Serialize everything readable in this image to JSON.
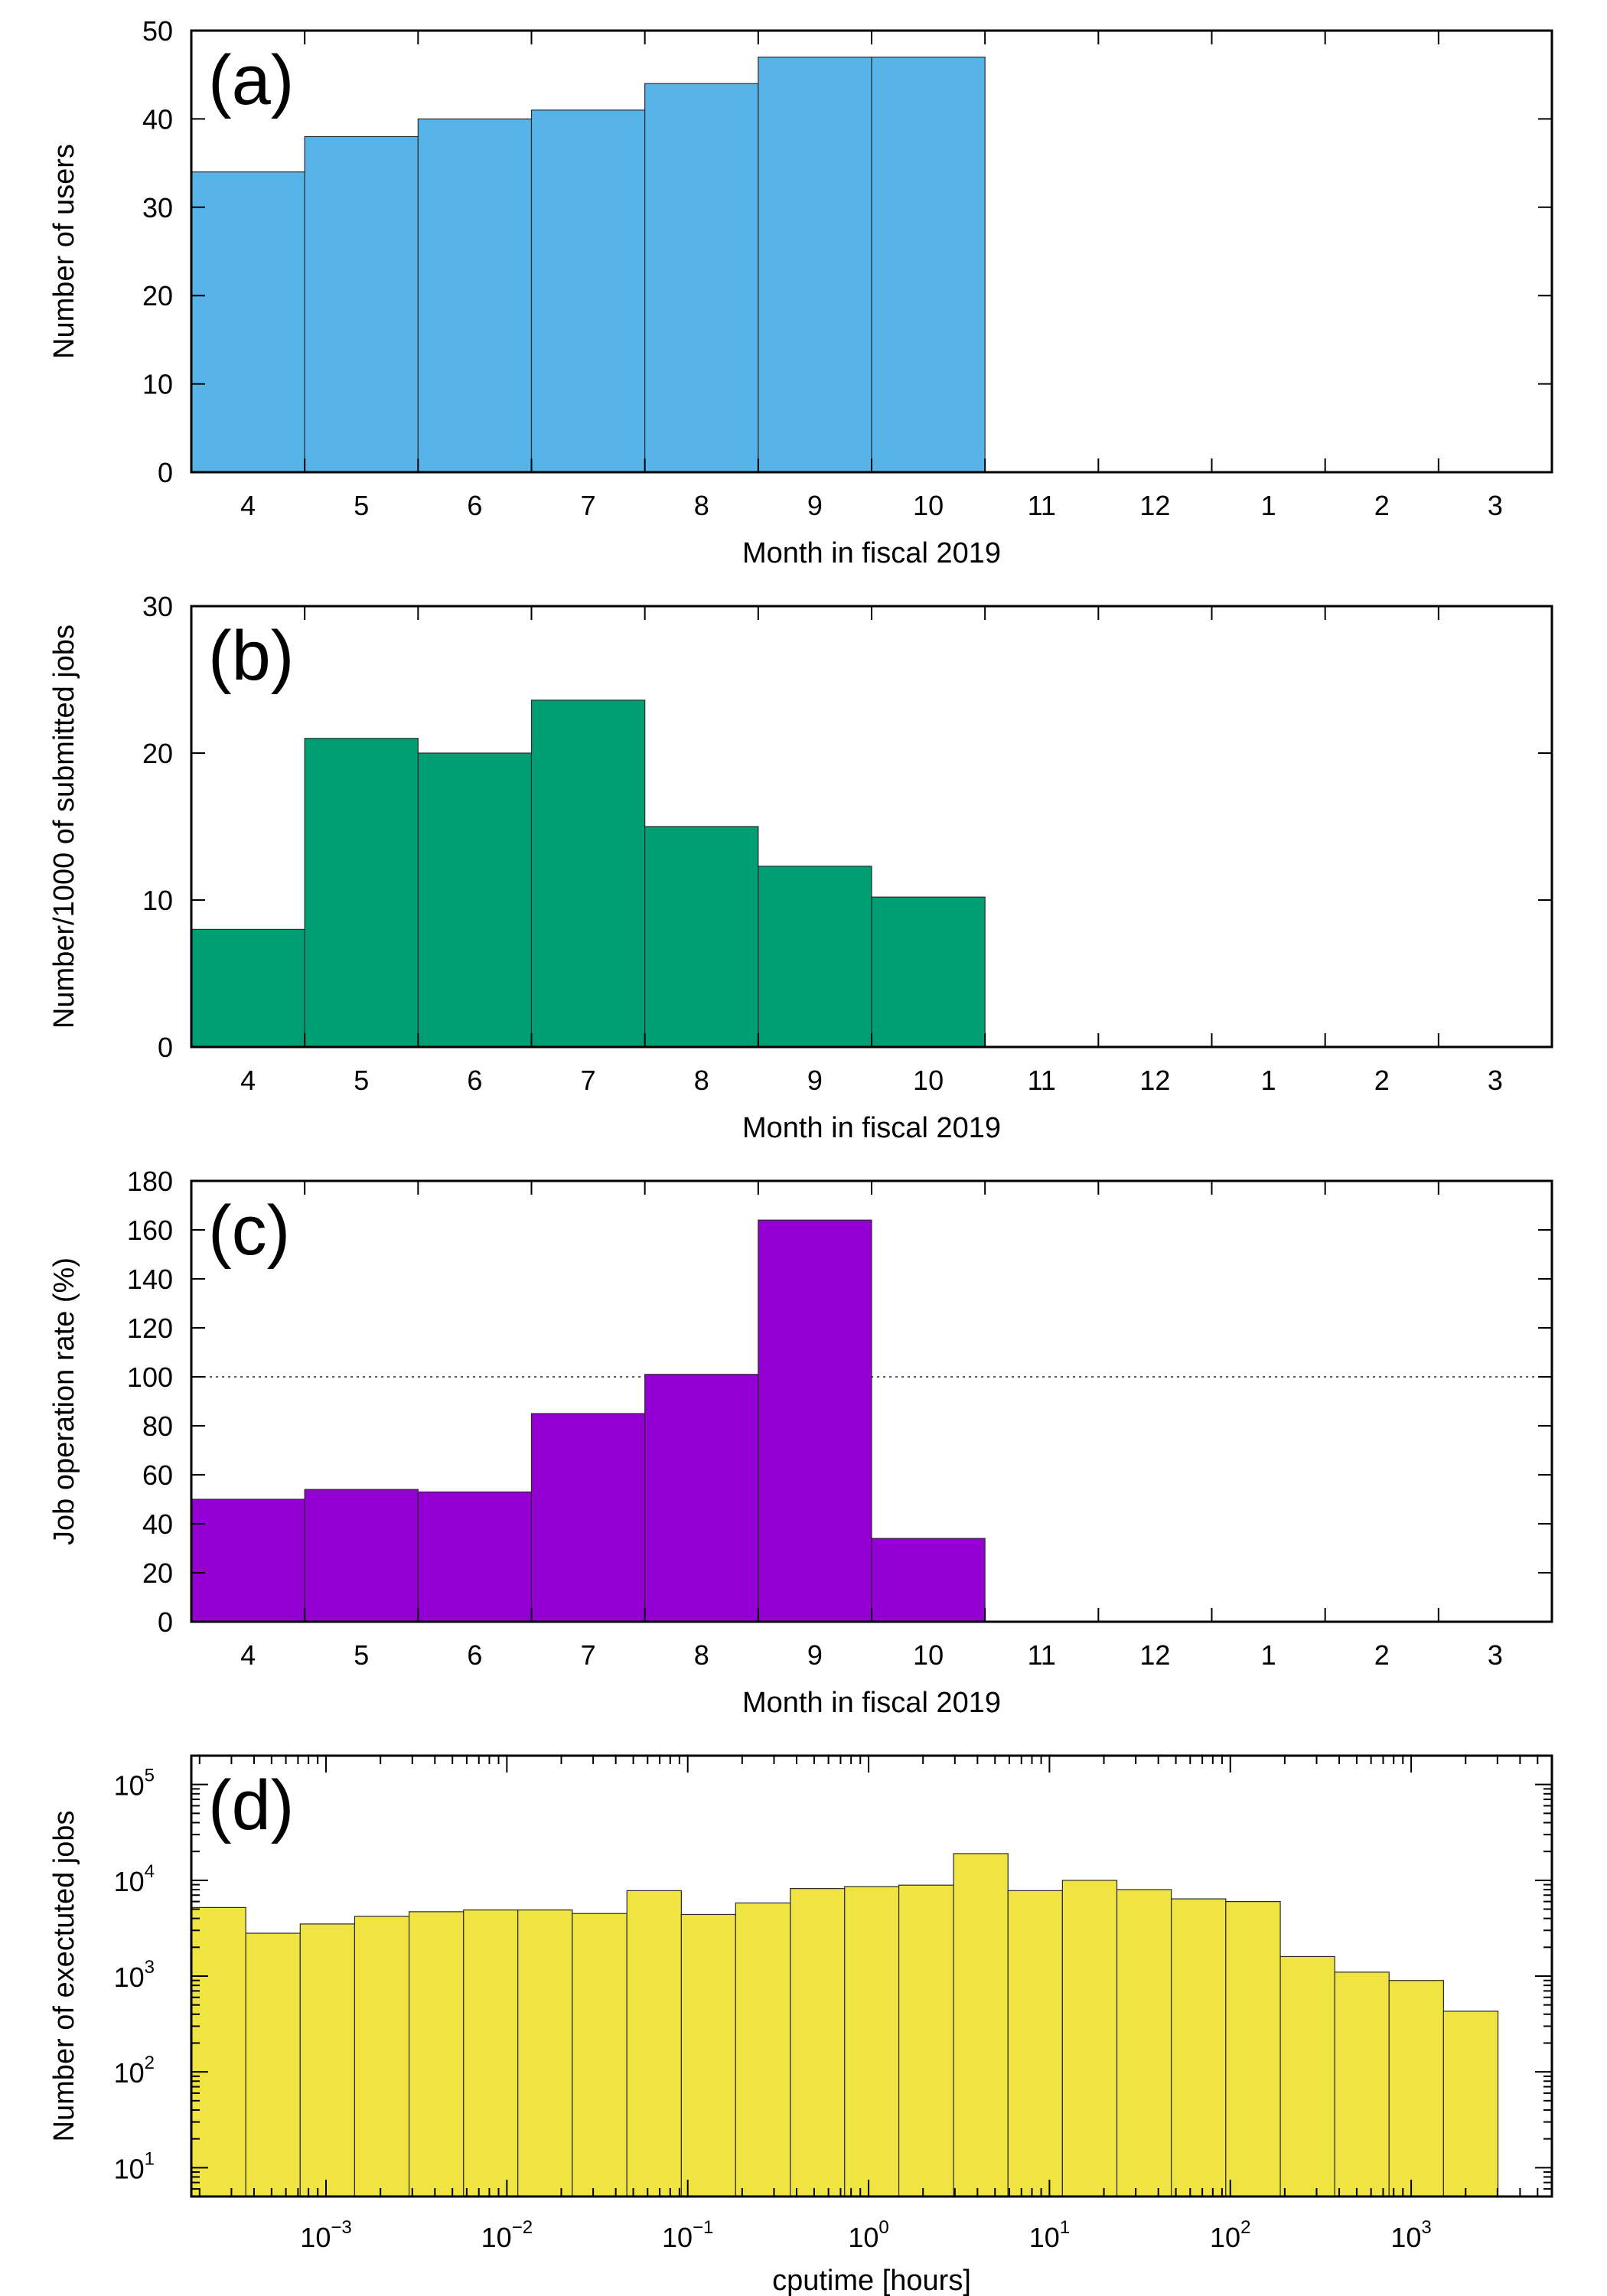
{
  "chart_data": [
    {
      "type": "bar",
      "panel_label": "(a)",
      "categories": [
        "4",
        "5",
        "6",
        "7",
        "8",
        "9",
        "10",
        "11",
        "12",
        "1",
        "2",
        "3"
      ],
      "values": [
        34,
        38,
        40,
        41,
        44,
        47,
        47,
        null,
        null,
        null,
        null,
        null
      ],
      "xlabel": "Month in fiscal 2019",
      "ylabel": "Number of users",
      "ylim": [
        0,
        50
      ],
      "yticks": [
        0,
        10,
        20,
        30,
        40,
        50
      ],
      "color": "#56b4e9"
    },
    {
      "type": "bar",
      "panel_label": "(b)",
      "categories": [
        "4",
        "5",
        "6",
        "7",
        "8",
        "9",
        "10",
        "11",
        "12",
        "1",
        "2",
        "3"
      ],
      "values": [
        8.0,
        21.0,
        20.0,
        23.6,
        15.0,
        12.3,
        10.2,
        null,
        null,
        null,
        null,
        null
      ],
      "xlabel": "Month in fiscal 2019",
      "ylabel": "Number/1000 of submitted jobs",
      "ylim": [
        0,
        30
      ],
      "yticks": [
        0,
        10,
        20,
        30
      ],
      "color": "#009e73"
    },
    {
      "type": "bar",
      "panel_label": "(c)",
      "categories": [
        "4",
        "5",
        "6",
        "7",
        "8",
        "9",
        "10",
        "11",
        "12",
        "1",
        "2",
        "3"
      ],
      "values": [
        50,
        54,
        53,
        85,
        101,
        164,
        34,
        null,
        null,
        null,
        null,
        null
      ],
      "xlabel": "Month in fiscal 2019",
      "ylabel": "Job operation rate (%)",
      "ylim": [
        0,
        180
      ],
      "yticks": [
        0,
        20,
        40,
        60,
        80,
        100,
        120,
        140,
        160,
        180
      ],
      "reference_line": 100,
      "color": "#9400d3"
    },
    {
      "type": "bar",
      "panel_label": "(d)",
      "x_scale": "log",
      "y_scale": "log",
      "bin_edges_hours": [
        0.00018,
        0.00036,
        0.00072,
        0.00144,
        0.00288,
        0.00576,
        0.0115,
        0.023,
        0.0461,
        0.0922,
        0.184,
        0.369,
        0.737,
        1.47,
        2.95,
        5.9,
        11.8,
        23.6,
        47.2,
        94.4,
        189,
        378,
        755,
        1510,
        3020
      ],
      "values": [
        5200,
        2800,
        3500,
        4200,
        4700,
        4900,
        4900,
        4500,
        7800,
        4400,
        5800,
        8200,
        8600,
        8900,
        19000,
        7800,
        10000,
        8000,
        6400,
        6000,
        1600,
        1100,
        900,
        430
      ],
      "xlabel": "cputime [hours]",
      "ylabel": "Number of exectuted jobs",
      "xlim": [
        0.00018,
        6000
      ],
      "ylim": [
        5,
        200000
      ],
      "xticks": [
        {
          "base": "10",
          "exp": "−3",
          "value": 0.001
        },
        {
          "base": "10",
          "exp": "−2",
          "value": 0.01
        },
        {
          "base": "10",
          "exp": "−1",
          "value": 0.1
        },
        {
          "base": "10",
          "exp": "0",
          "value": 1
        },
        {
          "base": "10",
          "exp": "1",
          "value": 10
        },
        {
          "base": "10",
          "exp": "2",
          "value": 100
        },
        {
          "base": "10",
          "exp": "3",
          "value": 1000
        }
      ],
      "yticks": [
        {
          "base": "10",
          "exp": "1",
          "value": 10
        },
        {
          "base": "10",
          "exp": "2",
          "value": 100
        },
        {
          "base": "10",
          "exp": "3",
          "value": 1000
        },
        {
          "base": "10",
          "exp": "4",
          "value": 10000
        },
        {
          "base": "10",
          "exp": "5",
          "value": 100000
        }
      ],
      "color": "#f0e442"
    }
  ]
}
